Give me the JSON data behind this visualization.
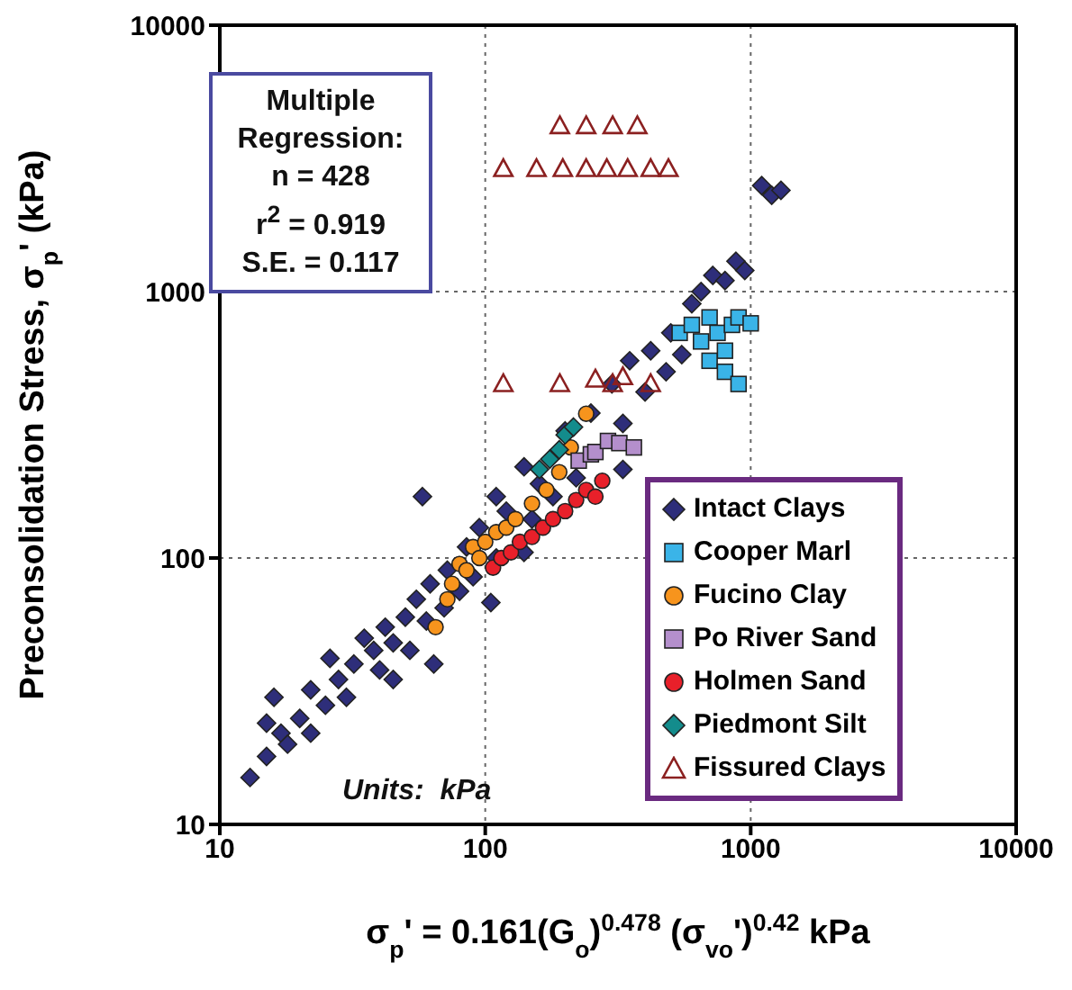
{
  "chart_data": {
    "type": "scatter",
    "xlabel": "σ$_{p}$' = 0.161(G$_{o}$)$^{0.478}$ (σ$_{vo}$')$^{0.42}$  kPa",
    "ylabel": "Preconsolidation Stress, σ$_{p}$' (kPa)",
    "annotations": [
      "Multiple Regression:",
      "n = 428",
      "r$^{2}$ = 0.919",
      "S.E. = 0.117",
      "Units:  kPa"
    ],
    "log": "xy",
    "xlim": [
      10,
      10000
    ],
    "ylim": [
      10,
      10000
    ],
    "xticks": [
      10,
      100,
      1000,
      10000
    ],
    "yticks": [
      10,
      100,
      1000,
      10000
    ],
    "grid": true,
    "legend": "bottom right",
    "series": [
      {
        "name": "Intact Clays",
        "color": "#2e2e7a",
        "marker": "diamond",
        "x": [
          13,
          15,
          15,
          16,
          17,
          18,
          20,
          22,
          22,
          25,
          26,
          28,
          30,
          32,
          35,
          38,
          40,
          42,
          45,
          50,
          52,
          55,
          58,
          60,
          62,
          70,
          72,
          80,
          85,
          90,
          95,
          105,
          110,
          110,
          120,
          140,
          140,
          150,
          160,
          180,
          200,
          220,
          250,
          330,
          300,
          330,
          350,
          400,
          420,
          480,
          500,
          550,
          600,
          650,
          720,
          800,
          880,
          950,
          1100,
          1200,
          1300,
          64,
          45
        ],
        "values": [
          15,
          18,
          24,
          30,
          22,
          20,
          25,
          32,
          22,
          28,
          42,
          35,
          30,
          40,
          50,
          45,
          38,
          55,
          48,
          60,
          45,
          70,
          170,
          58,
          80,
          65,
          90,
          75,
          110,
          85,
          130,
          68,
          100,
          170,
          150,
          105,
          220,
          140,
          190,
          170,
          300,
          200,
          350,
          215,
          450,
          320,
          550,
          420,
          600,
          500,
          700,
          580,
          900,
          1000,
          1150,
          1100,
          1300,
          1200,
          2500,
          2300,
          2400,
          40,
          35
        ]
      },
      {
        "name": "Cooper Marl",
        "color": "#3ab4e8",
        "marker": "square",
        "x": [
          540,
          600,
          650,
          700,
          750,
          800,
          850,
          900,
          1000,
          700,
          800,
          900
        ],
        "values": [
          700,
          750,
          650,
          800,
          700,
          600,
          750,
          800,
          760,
          550,
          500,
          450
        ]
      },
      {
        "name": "Fucino Clay",
        "color": "#f7941d",
        "marker": "circle",
        "x": [
          65,
          72,
          75,
          80,
          85,
          90,
          95,
          100,
          110,
          120,
          130,
          150,
          170,
          190,
          210,
          240
        ],
        "values": [
          55,
          70,
          80,
          95,
          90,
          110,
          100,
          115,
          125,
          130,
          140,
          160,
          180,
          210,
          260,
          348
        ]
      },
      {
        "name": "Po River Sand",
        "color": "#b48fcc",
        "marker": "square",
        "x": [
          225,
          250,
          260,
          290,
          320,
          363
        ],
        "values": [
          232,
          245,
          250,
          275,
          270,
          260
        ]
      },
      {
        "name": "Holmen Sand",
        "color": "#e8202a",
        "marker": "circle",
        "x": [
          107,
          115,
          125,
          135,
          150,
          165,
          180,
          200,
          220,
          240,
          260,
          276
        ],
        "values": [
          92,
          100,
          105,
          115,
          120,
          130,
          140,
          150,
          165,
          180,
          170,
          195
        ]
      },
      {
        "name": "Piedmont Silt",
        "color": "#138c8c",
        "marker": "diamond",
        "x": [
          160,
          175,
          190,
          200,
          215
        ],
        "values": [
          215,
          235,
          255,
          290,
          310
        ]
      },
      {
        "name": "Fissured Clays",
        "color": "#8b2020",
        "marker": "triangle",
        "x": [
          191,
          240,
          302,
          374,
          117,
          156,
          196,
          240,
          287,
          344,
          420,
          490,
          117,
          191,
          260,
          302,
          330,
          420
        ],
        "values": [
          4200,
          4200,
          4200,
          4200,
          2900,
          2900,
          2900,
          2900,
          2900,
          2900,
          2900,
          2900,
          452,
          452,
          470,
          452,
          480,
          452
        ]
      }
    ]
  }
}
